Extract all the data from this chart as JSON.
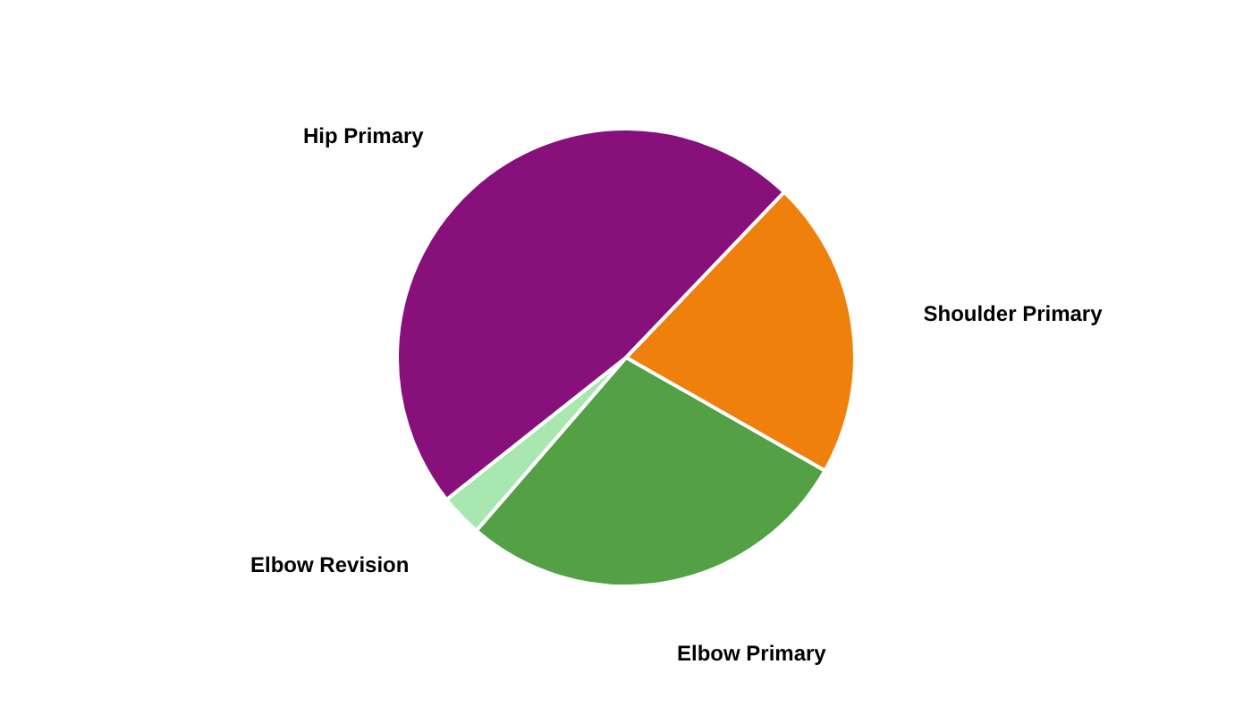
{
  "chart_data": {
    "type": "pie",
    "categories": [
      "Shoulder Primary",
      "Elbow Primary",
      "Elbow Revision",
      "Hip Primary"
    ],
    "values": [
      21.1,
      28.1,
      3.0,
      47.8
    ],
    "colors": [
      "#f0800c",
      "#53a045",
      "#a8e8b0",
      "#87107a"
    ]
  }
}
